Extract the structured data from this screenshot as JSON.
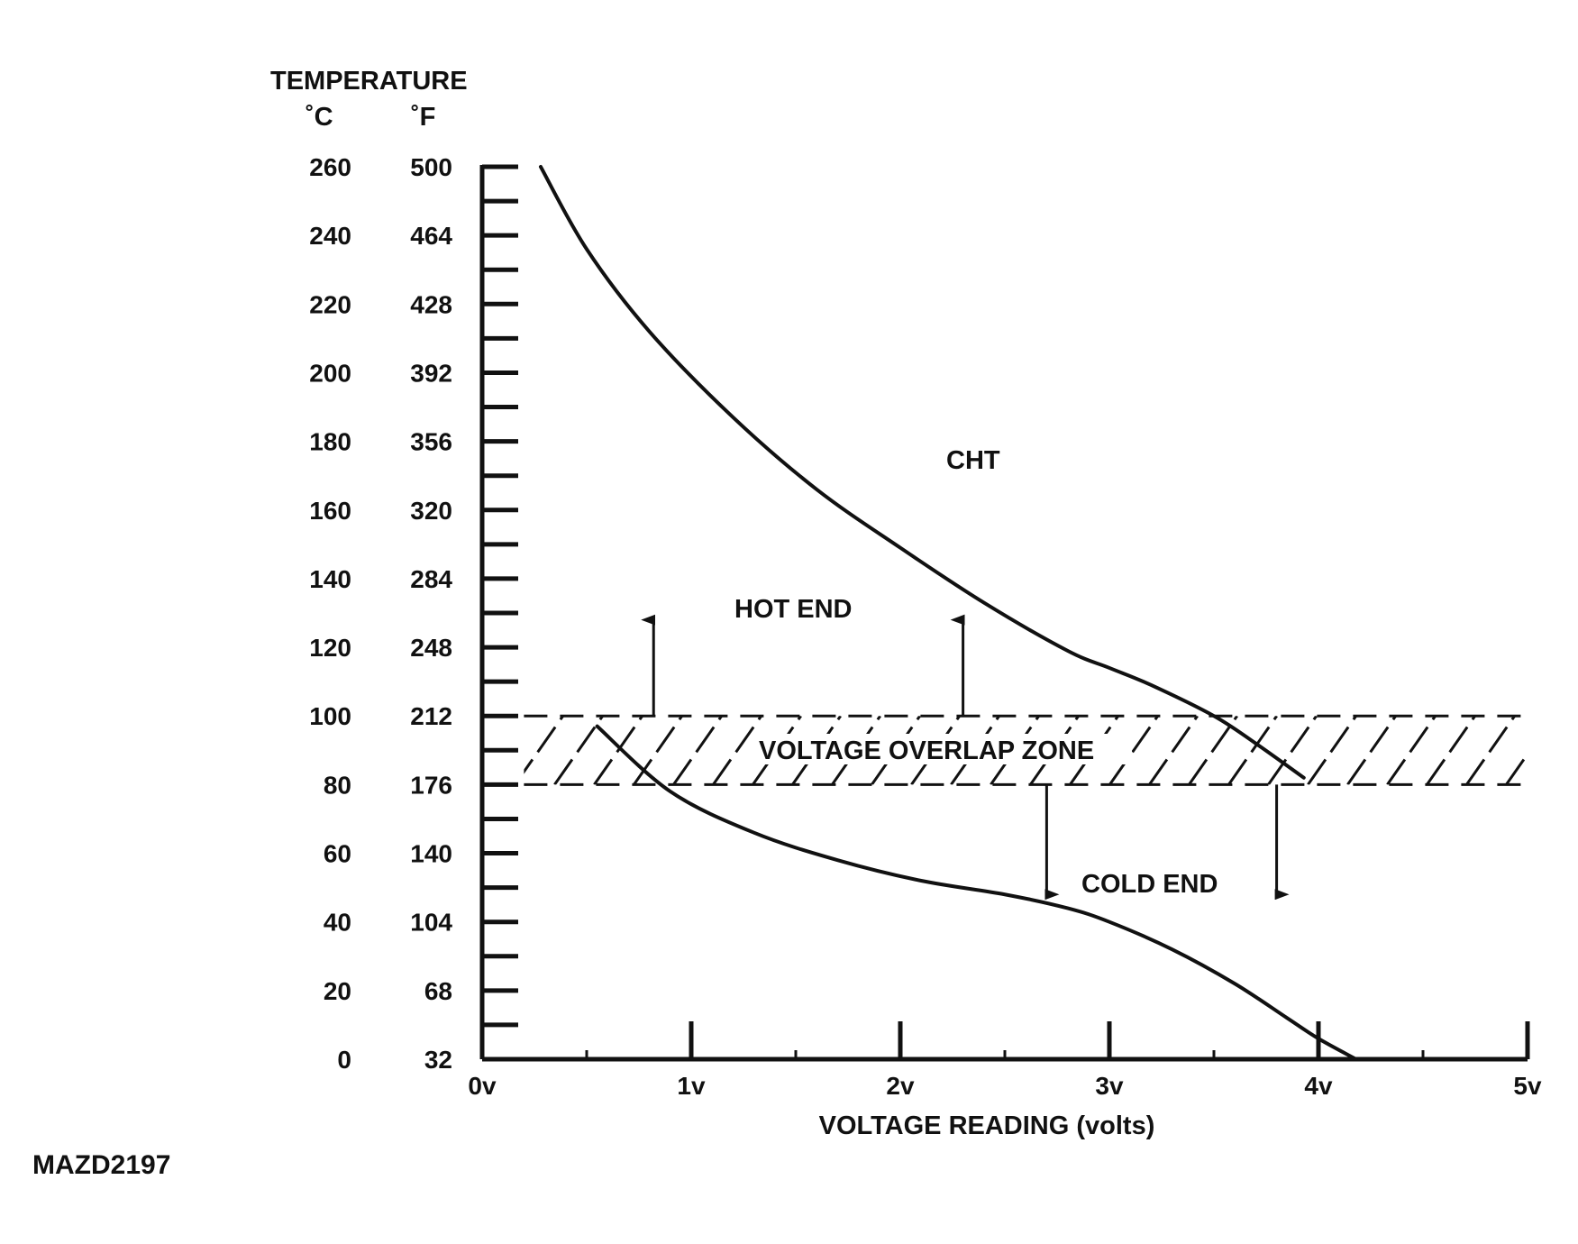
{
  "figure_id": "MAZD2197",
  "chart_data": {
    "type": "line",
    "ylabel": "TEMPERATURE",
    "y_unit_c": "˚C",
    "y_unit_f": "˚F",
    "xlabel": "VOLTAGE READING (volts)",
    "xlim": [
      0,
      5
    ],
    "ylim": [
      0,
      260
    ],
    "x_ticks": [
      "0v",
      "1v",
      "2v",
      "3v",
      "4v",
      "5v"
    ],
    "x_tick_values": [
      0,
      1,
      2,
      3,
      4,
      5
    ],
    "y_ticks_c": [
      "0",
      "20",
      "40",
      "60",
      "80",
      "100",
      "120",
      "140",
      "160",
      "180",
      "200",
      "220",
      "240",
      "260"
    ],
    "y_ticks_f": [
      "32",
      "68",
      "104",
      "140",
      "176",
      "212",
      "248",
      "284",
      "320",
      "356",
      "392",
      "428",
      "464",
      "500"
    ],
    "y_tick_values": [
      0,
      20,
      40,
      60,
      80,
      100,
      120,
      140,
      160,
      180,
      200,
      220,
      240,
      260
    ],
    "grid": false,
    "series": [
      {
        "label": "hot-end-curve",
        "x": [
          0.28,
          0.5,
          0.8,
          1.2,
          1.6,
          2.0,
          2.4,
          2.8,
          3.0,
          3.2,
          3.5,
          3.7,
          3.93
        ],
        "y": [
          260,
          236,
          212,
          187,
          166,
          149,
          133,
          119,
          114,
          109,
          100,
          92,
          82
        ]
      },
      {
        "label": "cold-end-curve",
        "x": [
          0.55,
          0.9,
          1.3,
          1.7,
          2.1,
          2.5,
          2.8,
          3.0,
          3.3,
          3.6,
          3.85,
          4.0,
          4.18
        ],
        "y": [
          97,
          78,
          66,
          58,
          52,
          48,
          44,
          40,
          32,
          22,
          12,
          6,
          0
        ]
      }
    ],
    "band": {
      "label": "VOLTAGE OVERLAP ZONE",
      "y_from": 80,
      "y_to": 100,
      "x_from": 0.2,
      "x_to": 5
    },
    "arrows": [
      {
        "x": 0.82,
        "from": 100,
        "to": 128
      },
      {
        "x": 2.3,
        "from": 100,
        "to": 128
      },
      {
        "x": 2.7,
        "from": 80,
        "to": 48
      },
      {
        "x": 3.8,
        "from": 80,
        "to": 48
      }
    ],
    "annotations": {
      "cht": "CHT",
      "hot_end": "HOT END",
      "cold_end": "COLD END"
    }
  }
}
